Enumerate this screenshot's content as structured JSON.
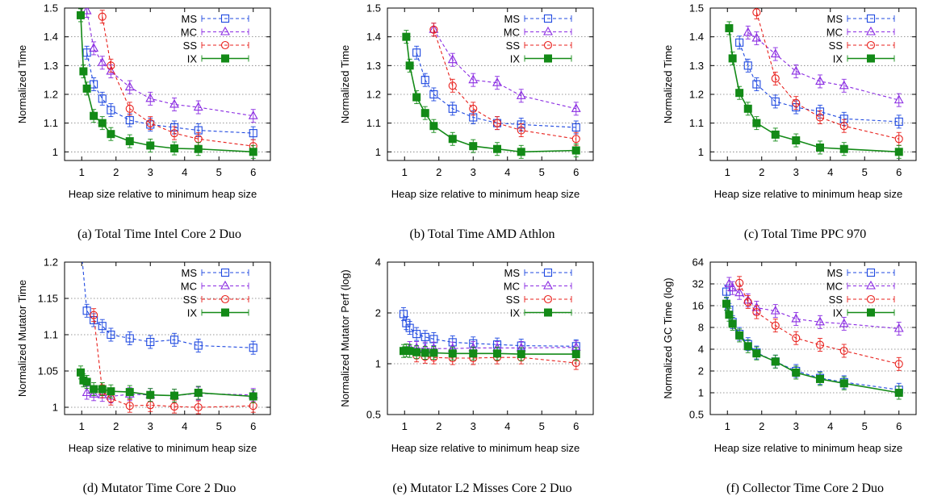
{
  "figure": {
    "legend_labels": [
      "MS",
      "MC",
      "SS",
      "IX"
    ],
    "series_colors": {
      "MS": "#1f49e0",
      "MC": "#8a2be2",
      "SS": "#e8201c",
      "IX": "#138a17"
    }
  },
  "chart_data": [
    {
      "type": "line",
      "caption": "(a)  Total Time Intel Core 2 Duo",
      "xlabel": "Heap size relative to minimum heap size",
      "ylabel": "Normalized Time",
      "xlim": [
        0.5,
        6.5
      ],
      "ylim": [
        0.97,
        1.5
      ],
      "xticks": [
        1,
        2,
        3,
        4,
        5,
        6
      ],
      "xtick_labels": [
        "1",
        "2",
        "3",
        "4",
        "5",
        "6"
      ],
      "yticks": [
        1,
        1.1,
        1.2,
        1.3,
        1.4,
        1.5
      ],
      "ytick_labels": [
        "1",
        "1.1",
        "1.2",
        "1.3",
        "1.4",
        "1.5"
      ],
      "log_y": false,
      "grid": true,
      "legend": "top-right",
      "series": [
        {
          "name": "MS",
          "x": [
            1.15,
            1.35,
            1.6,
            1.85,
            2.4,
            3.0,
            3.7,
            4.4,
            6.0
          ],
          "y": [
            1.345,
            1.235,
            1.185,
            1.145,
            1.11,
            1.095,
            1.085,
            1.075,
            1.065
          ]
        },
        {
          "name": "MC",
          "x": [
            1.15,
            1.35,
            1.6,
            1.85,
            2.4,
            3.0,
            3.7,
            4.4,
            6.0
          ],
          "y": [
            1.49,
            1.36,
            1.31,
            1.28,
            1.225,
            1.185,
            1.165,
            1.155,
            1.125
          ]
        },
        {
          "name": "SS",
          "x": [
            1.6,
            1.85,
            2.4,
            3.0,
            3.7,
            4.4,
            6.0
          ],
          "y": [
            1.47,
            1.3,
            1.15,
            1.1,
            1.065,
            1.045,
            1.02
          ]
        },
        {
          "name": "IX",
          "x": [
            0.97,
            1.05,
            1.15,
            1.35,
            1.6,
            1.85,
            2.4,
            3.0,
            3.7,
            4.4,
            6.0
          ],
          "y": [
            1.475,
            1.28,
            1.22,
            1.125,
            1.1,
            1.062,
            1.037,
            1.022,
            1.012,
            1.01,
            1.0
          ]
        }
      ]
    },
    {
      "type": "line",
      "caption": "(b)  Total Time AMD Athlon",
      "xlabel": "Heap size relative to minimum heap size",
      "ylabel": "Normalized Time",
      "xlim": [
        0.5,
        6.5
      ],
      "ylim": [
        0.97,
        1.5
      ],
      "xticks": [
        1,
        2,
        3,
        4,
        5,
        6
      ],
      "xtick_labels": [
        "1",
        "2",
        "3",
        "4",
        "5",
        "6"
      ],
      "yticks": [
        1,
        1.1,
        1.2,
        1.3,
        1.4,
        1.5
      ],
      "ytick_labels": [
        "1",
        "1.1",
        "1.2",
        "1.3",
        "1.4",
        "1.5"
      ],
      "log_y": false,
      "grid": true,
      "legend": "top-right",
      "series": [
        {
          "name": "MS",
          "x": [
            1.35,
            1.6,
            1.85,
            2.4,
            3.0,
            3.7,
            4.4,
            6.0
          ],
          "y": [
            1.345,
            1.25,
            1.2,
            1.15,
            1.12,
            1.1,
            1.095,
            1.085
          ]
        },
        {
          "name": "MC",
          "x": [
            1.85,
            2.4,
            3.0,
            3.7,
            4.4,
            6.0
          ],
          "y": [
            1.425,
            1.32,
            1.25,
            1.24,
            1.195,
            1.15
          ]
        },
        {
          "name": "SS",
          "x": [
            1.85,
            2.4,
            3.0,
            3.7,
            4.4,
            6.0
          ],
          "y": [
            1.425,
            1.23,
            1.15,
            1.1,
            1.075,
            1.045
          ]
        },
        {
          "name": "IX",
          "x": [
            1.05,
            1.15,
            1.35,
            1.6,
            1.85,
            2.4,
            3.0,
            3.7,
            4.4,
            6.0
          ],
          "y": [
            1.4,
            1.3,
            1.19,
            1.135,
            1.09,
            1.045,
            1.02,
            1.01,
            1.0,
            1.005
          ]
        }
      ]
    },
    {
      "type": "line",
      "caption": "(c)  Total Time PPC 970",
      "xlabel": "Heap size relative to minimum heap size",
      "ylabel": "Normalized Time",
      "xlim": [
        0.5,
        6.5
      ],
      "ylim": [
        0.97,
        1.5
      ],
      "xticks": [
        1,
        2,
        3,
        4,
        5,
        6
      ],
      "xtick_labels": [
        "1",
        "2",
        "3",
        "4",
        "5",
        "6"
      ],
      "yticks": [
        1,
        1.1,
        1.2,
        1.3,
        1.4,
        1.5
      ],
      "ytick_labels": [
        "1",
        "1.1",
        "1.2",
        "1.3",
        "1.4",
        "1.5"
      ],
      "log_y": false,
      "grid": true,
      "legend": "top-right",
      "series": [
        {
          "name": "MS",
          "x": [
            1.35,
            1.6,
            1.85,
            2.4,
            3.0,
            3.7,
            4.4,
            6.0
          ],
          "y": [
            1.38,
            1.3,
            1.235,
            1.175,
            1.155,
            1.14,
            1.115,
            1.105
          ]
        },
        {
          "name": "MC",
          "x": [
            1.6,
            1.85,
            2.4,
            3.0,
            3.7,
            4.4,
            6.0
          ],
          "y": [
            1.415,
            1.395,
            1.34,
            1.28,
            1.245,
            1.23,
            1.18
          ]
        },
        {
          "name": "SS",
          "x": [
            1.85,
            2.4,
            3.0,
            3.7,
            4.4,
            6.0
          ],
          "y": [
            1.485,
            1.255,
            1.17,
            1.12,
            1.09,
            1.045
          ]
        },
        {
          "name": "IX",
          "x": [
            1.05,
            1.15,
            1.35,
            1.6,
            1.85,
            2.4,
            3.0,
            3.7,
            4.4,
            6.0
          ],
          "y": [
            1.43,
            1.325,
            1.205,
            1.15,
            1.1,
            1.06,
            1.04,
            1.015,
            1.01,
            1.0
          ]
        }
      ]
    },
    {
      "type": "line",
      "caption": "(d)  Mutator Time Core 2 Duo",
      "xlabel": "Heap size relative to minimum heap size",
      "ylabel": "Normalized Mutator Time",
      "xlim": [
        0.5,
        6.5
      ],
      "ylim": [
        0.99,
        1.2
      ],
      "xticks": [
        1,
        2,
        3,
        4,
        5,
        6
      ],
      "xtick_labels": [
        "1",
        "2",
        "3",
        "4",
        "5",
        "6"
      ],
      "yticks": [
        1,
        1.05,
        1.1,
        1.15,
        1.2
      ],
      "ytick_labels": [
        "1",
        "1.05",
        "1.1",
        "1.15",
        "1.2"
      ],
      "log_y": false,
      "grid": true,
      "legend": "top-right",
      "series": [
        {
          "name": "MS",
          "x": [
            1.0,
            1.15,
            1.35,
            1.6,
            1.85,
            2.4,
            3.0,
            3.7,
            4.4,
            6.0
          ],
          "y": [
            1.21,
            1.133,
            1.12,
            1.112,
            1.1,
            1.095,
            1.09,
            1.093,
            1.085,
            1.082
          ]
        },
        {
          "name": "MC",
          "x": [
            1.15,
            1.35,
            1.6,
            1.85,
            2.4,
            3.0,
            3.7,
            4.4,
            6.0
          ],
          "y": [
            1.02,
            1.018,
            1.017,
            1.015,
            1.018,
            1.017,
            1.016,
            1.019,
            1.017
          ]
        },
        {
          "name": "SS",
          "x": [
            1.35,
            1.6,
            1.85,
            2.4,
            3.0,
            3.7,
            4.4,
            6.0
          ],
          "y": [
            1.127,
            1.022,
            1.012,
            1.002,
            1.003,
            1.001,
            1.0,
            1.002
          ]
        },
        {
          "name": "IX",
          "x": [
            0.97,
            1.05,
            1.15,
            1.35,
            1.6,
            1.85,
            2.4,
            3.0,
            3.7,
            4.4,
            6.0
          ],
          "y": [
            1.048,
            1.037,
            1.035,
            1.025,
            1.025,
            1.022,
            1.021,
            1.017,
            1.016,
            1.02,
            1.015
          ]
        }
      ]
    },
    {
      "type": "line",
      "caption": "(e)  Mutator L2 Misses Core 2 Duo",
      "xlabel": "Heap size relative to minimum heap size",
      "ylabel": "Normalized Mutator Perf (log)",
      "xlim": [
        0.5,
        6.5
      ],
      "ylim": [
        0.5,
        4
      ],
      "xticks": [
        1,
        2,
        3,
        4,
        5,
        6
      ],
      "xtick_labels": [
        "1",
        "2",
        "3",
        "4",
        "5",
        "6"
      ],
      "yticks": [
        0.5,
        1,
        2,
        4
      ],
      "ytick_labels": [
        "0.5",
        "1",
        "2",
        "4"
      ],
      "log_y": true,
      "grid": true,
      "legend": "top-right",
      "series": [
        {
          "name": "MS",
          "x": [
            0.97,
            1.05,
            1.15,
            1.35,
            1.6,
            1.85,
            2.4,
            3.0,
            3.7,
            4.4,
            6.0
          ],
          "y": [
            1.97,
            1.74,
            1.63,
            1.5,
            1.44,
            1.4,
            1.34,
            1.32,
            1.3,
            1.28,
            1.27
          ]
        },
        {
          "name": "MC",
          "x": [
            1.15,
            1.35,
            1.6,
            1.85,
            2.4,
            3.0,
            3.7,
            4.4,
            6.0
          ],
          "y": [
            1.24,
            1.24,
            1.23,
            1.23,
            1.23,
            1.24,
            1.24,
            1.24,
            1.25
          ]
        },
        {
          "name": "SS",
          "x": [
            1.35,
            1.6,
            1.85,
            2.4,
            3.0,
            3.7,
            4.4,
            6.0
          ],
          "y": [
            1.12,
            1.1,
            1.09,
            1.08,
            1.08,
            1.09,
            1.09,
            1.01
          ]
        },
        {
          "name": "IX",
          "x": [
            0.97,
            1.05,
            1.15,
            1.35,
            1.6,
            1.85,
            2.4,
            3.0,
            3.7,
            4.4,
            6.0
          ],
          "y": [
            1.19,
            1.2,
            1.19,
            1.17,
            1.16,
            1.16,
            1.15,
            1.15,
            1.15,
            1.14,
            1.14
          ]
        }
      ]
    },
    {
      "type": "line",
      "caption": "(f)  Collector Time Core 2 Duo",
      "xlabel": "Heap size relative to minimum heap size",
      "ylabel": "Normalized GC Time (log)",
      "xlim": [
        0.5,
        6.5
      ],
      "ylim": [
        0.5,
        64
      ],
      "xticks": [
        1,
        2,
        3,
        4,
        5,
        6
      ],
      "xtick_labels": [
        "1",
        "2",
        "3",
        "4",
        "5",
        "6"
      ],
      "yticks": [
        0.5,
        1,
        2,
        4,
        8,
        16,
        32,
        64
      ],
      "ytick_labels": [
        "0.5",
        "1",
        "2",
        "4",
        "8",
        "16",
        "32",
        "64"
      ],
      "log_y": true,
      "grid": true,
      "legend": "top-right",
      "series": [
        {
          "name": "MS",
          "x": [
            0.97,
            1.05,
            1.15,
            1.35,
            1.6,
            1.85,
            2.4,
            3.0,
            3.7,
            4.4,
            6.0
          ],
          "y": [
            25,
            14,
            9.5,
            6.5,
            4.7,
            3.6,
            2.7,
            2.0,
            1.6,
            1.4,
            1.1
          ]
        },
        {
          "name": "MC",
          "x": [
            1.05,
            1.15,
            1.35,
            1.6,
            1.85,
            2.4,
            3.0,
            3.7,
            4.4,
            6.0
          ],
          "y": [
            32,
            28,
            24,
            19,
            15,
            13.5,
            10.5,
            9.5,
            9.0,
            7.7
          ]
        },
        {
          "name": "SS",
          "x": [
            1.35,
            1.6,
            1.85,
            2.4,
            3.0,
            3.7,
            4.4,
            6.0
          ],
          "y": [
            33,
            18,
            13,
            8.5,
            5.7,
            4.6,
            3.8,
            2.5
          ]
        },
        {
          "name": "IX",
          "x": [
            0.97,
            1.05,
            1.15,
            1.35,
            1.6,
            1.85,
            2.4,
            3.0,
            3.7,
            4.4,
            6.0
          ],
          "y": [
            17,
            12,
            9,
            6.2,
            4.4,
            3.5,
            2.7,
            1.9,
            1.55,
            1.35,
            1.0
          ]
        }
      ]
    }
  ]
}
